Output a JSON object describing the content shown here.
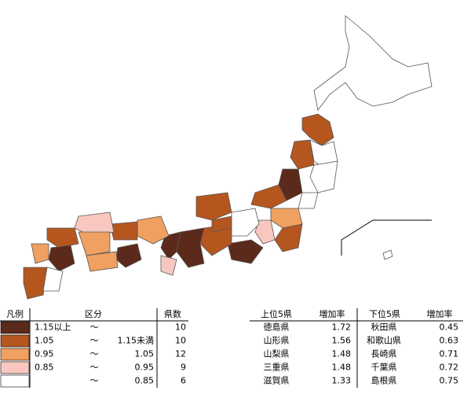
{
  "legend": {
    "headers": [
      "凡例",
      "区分",
      "県数"
    ],
    "rows": [
      {
        "color": "#5c2a1a",
        "from": "1.15以上",
        "sep": "～",
        "count": 10
      },
      {
        "color": "#b5561f",
        "from": "1.05",
        "sep": "～",
        "to": "1.15未満",
        "count": 10
      },
      {
        "color": "#f0a060",
        "from": "0.95",
        "sep": "～",
        "to": "1.05",
        "count": 12
      },
      {
        "color": "#f8c8c0",
        "from": "0.85",
        "sep": "～",
        "to": "0.95",
        "count": 9
      },
      {
        "color": "#ffffff",
        "sep": "～",
        "to": "0.85",
        "count": 6
      }
    ]
  },
  "ranking": {
    "headers": [
      "上位5県",
      "増加率",
      "下位5県",
      "増加率"
    ],
    "top": [
      {
        "name": "徳島県",
        "rate": 1.72
      },
      {
        "name": "山形県",
        "rate": 1.56
      },
      {
        "name": "山梨県",
        "rate": 1.48
      },
      {
        "name": "三重県",
        "rate": 1.48
      },
      {
        "name": "滋賀県",
        "rate": 1.33
      }
    ],
    "bottom": [
      {
        "name": "秋田県",
        "rate": 0.45
      },
      {
        "name": "和歌山県",
        "rate": 0.63
      },
      {
        "name": "長崎県",
        "rate": 0.71
      },
      {
        "name": "千葉県",
        "rate": 0.72
      },
      {
        "name": "島根県",
        "rate": 0.75
      }
    ]
  }
}
